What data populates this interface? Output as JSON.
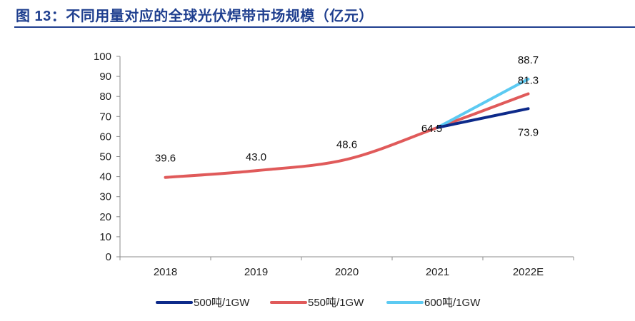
{
  "figure": {
    "title": "图 13：不同用量对应的全球光伏焊带市场规模（亿元）"
  },
  "chart_data": {
    "type": "line",
    "title": "不同用量对应的全球光伏焊带市场规模（亿元）",
    "xlabel": "",
    "ylabel": "",
    "categories": [
      "2018",
      "2019",
      "2020",
      "2021",
      "2022E"
    ],
    "yticks": [
      0,
      10,
      20,
      30,
      40,
      50,
      60,
      70,
      80,
      90,
      100
    ],
    "ylim": [
      0,
      100
    ],
    "grid": false,
    "legend_position": "bottom",
    "series": [
      {
        "name": "500吨/1GW",
        "color": "#0d2a8a",
        "values": [
          null,
          null,
          null,
          64.5,
          73.9
        ]
      },
      {
        "name": "550吨/1GW",
        "color": "#e05a5a",
        "values": [
          39.6,
          43.0,
          48.6,
          64.5,
          81.3
        ]
      },
      {
        "name": "600吨/1GW",
        "color": "#5ccaf2",
        "values": [
          null,
          null,
          null,
          64.5,
          88.7
        ]
      }
    ],
    "data_labels": [
      {
        "category": "2018",
        "value": 39.6,
        "text": "39.6"
      },
      {
        "category": "2019",
        "value": 43.0,
        "text": "43.0"
      },
      {
        "category": "2020",
        "value": 48.6,
        "text": "48.6"
      },
      {
        "category": "2021",
        "value": 64.5,
        "text": "64.5"
      },
      {
        "category": "2022E",
        "value": 88.7,
        "text": "88.7"
      },
      {
        "category": "2022E",
        "value": 81.3,
        "text": "81.3"
      },
      {
        "category": "2022E",
        "value": 73.9,
        "text": "73.9"
      }
    ]
  }
}
